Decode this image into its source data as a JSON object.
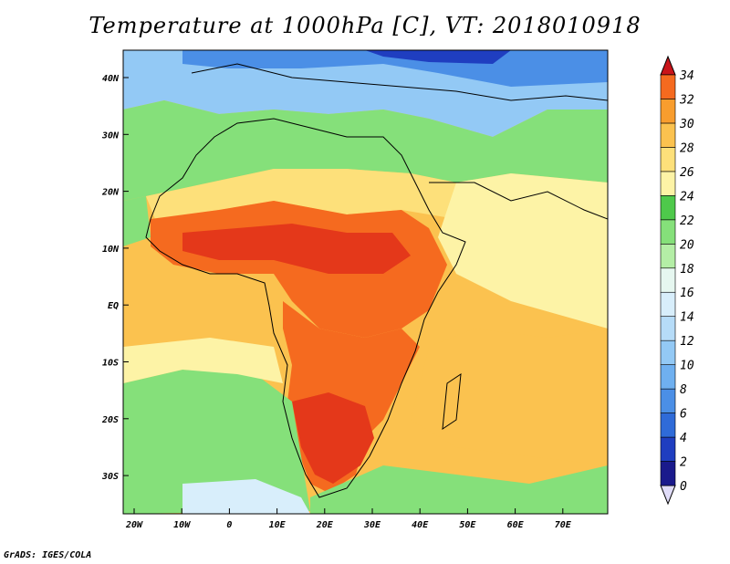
{
  "title": "Temperature at 1000hPa [C], VT: 2018010918",
  "credit": "GrADS: IGES/COLA",
  "map": {
    "variable": "Temperature at 1000hPa",
    "units": "C",
    "valid_time": "2018010918",
    "lon_ticks": [
      "20W",
      "10W",
      "0",
      "10E",
      "20E",
      "30E",
      "40E",
      "50E",
      "60E",
      "70E"
    ],
    "lat_ticks": [
      "40N",
      "30N",
      "20N",
      "10N",
      "EQ",
      "10S",
      "20S",
      "30S"
    ]
  },
  "colorbar": {
    "levels": [
      "0",
      "2",
      "4",
      "6",
      "8",
      "10",
      "12",
      "14",
      "16",
      "18",
      "20",
      "22",
      "24",
      "26",
      "28",
      "30",
      "32",
      "34"
    ],
    "colors": [
      "#1a1a8c",
      "#1f3ec0",
      "#2f6bd8",
      "#4b8fe6",
      "#6fb0f0",
      "#93c9f5",
      "#b6dcf8",
      "#d8eefb",
      "#e6f7f0",
      "#b4eea6",
      "#85e07a",
      "#4ec94b",
      "#fdf3a6",
      "#fde07a",
      "#fbc24f",
      "#f89d2e",
      "#f56a1f",
      "#e4381a",
      "#c9141a"
    ]
  }
}
